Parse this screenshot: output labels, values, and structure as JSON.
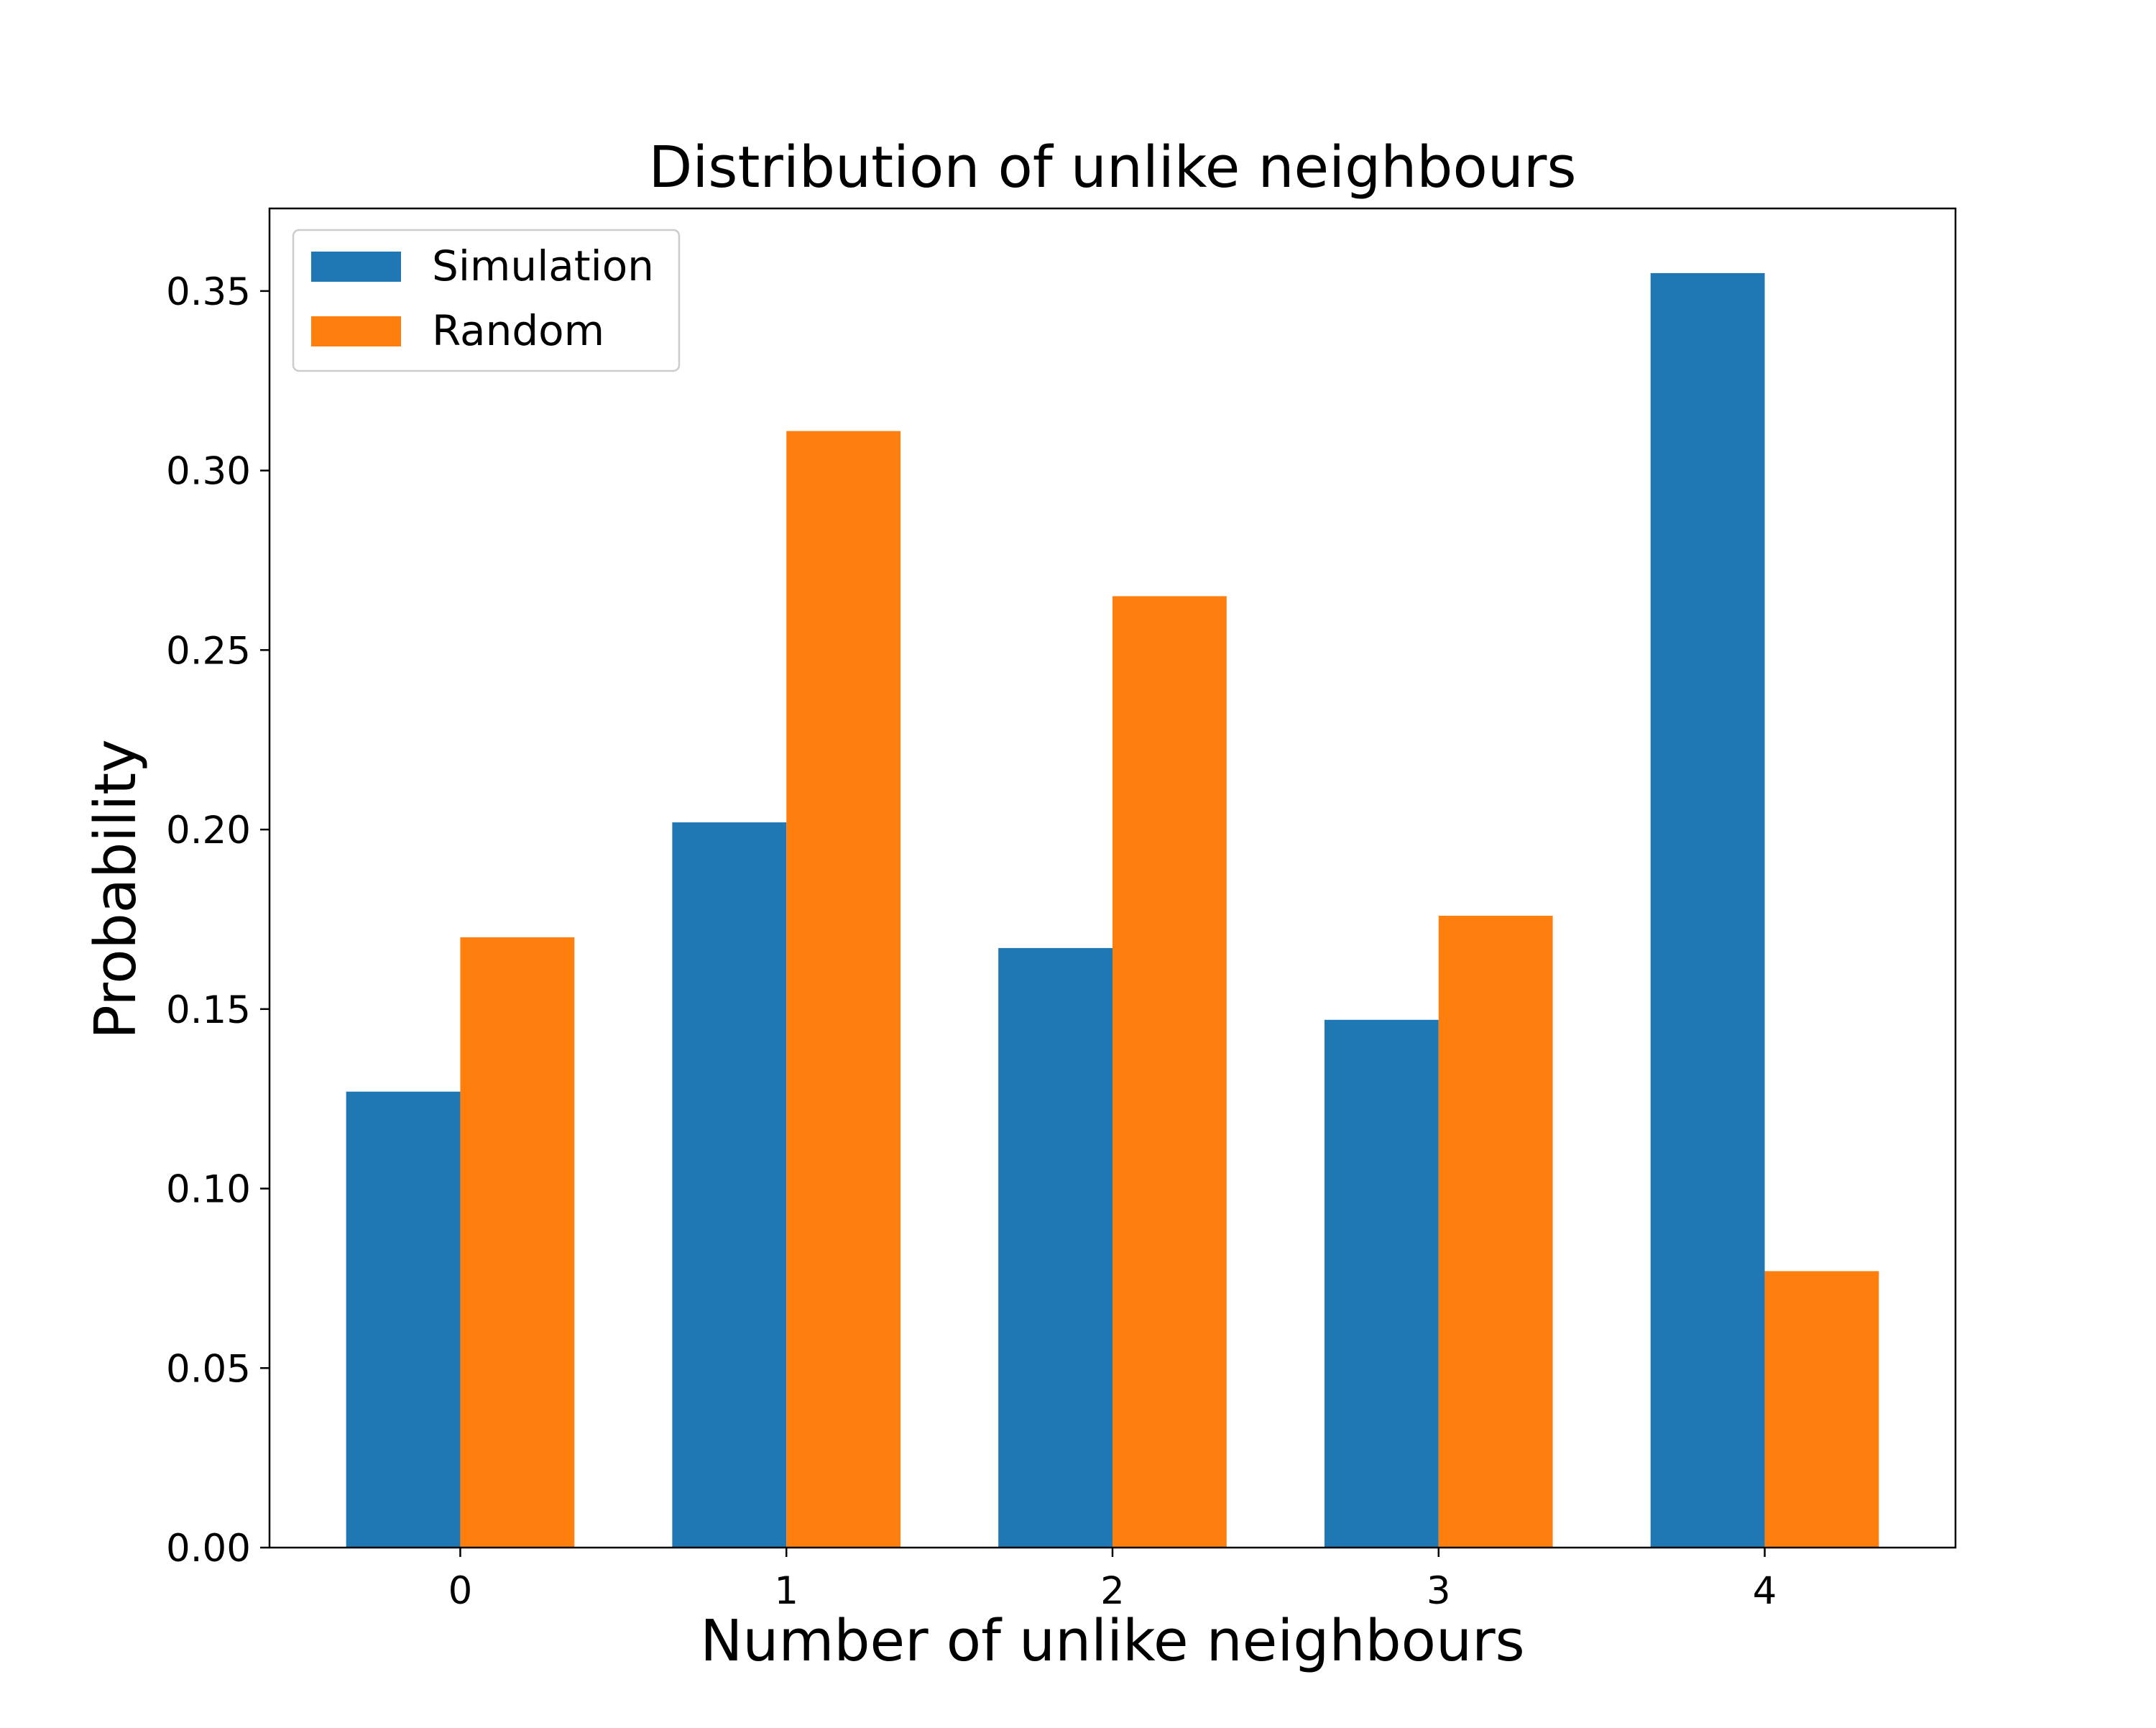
{
  "chart_data": {
    "type": "bar",
    "title": "Distribution of unlike neighbours",
    "xlabel": "Number of unlike neighbours",
    "ylabel": "Probability",
    "categories": [
      "0",
      "1",
      "2",
      "3",
      "4"
    ],
    "series": [
      {
        "name": "Simulation",
        "color": "#1f77b4",
        "values": [
          0.127,
          0.202,
          0.167,
          0.147,
          0.355
        ]
      },
      {
        "name": "Random",
        "color": "#ff7f0e",
        "values": [
          0.17,
          0.311,
          0.265,
          0.176,
          0.077
        ]
      }
    ],
    "ylim": [
      0,
      0.373
    ],
    "yticks": [
      "0.00",
      "0.05",
      "0.10",
      "0.15",
      "0.20",
      "0.25",
      "0.30",
      "0.35"
    ],
    "grid": false,
    "legend_position": "top-left"
  }
}
